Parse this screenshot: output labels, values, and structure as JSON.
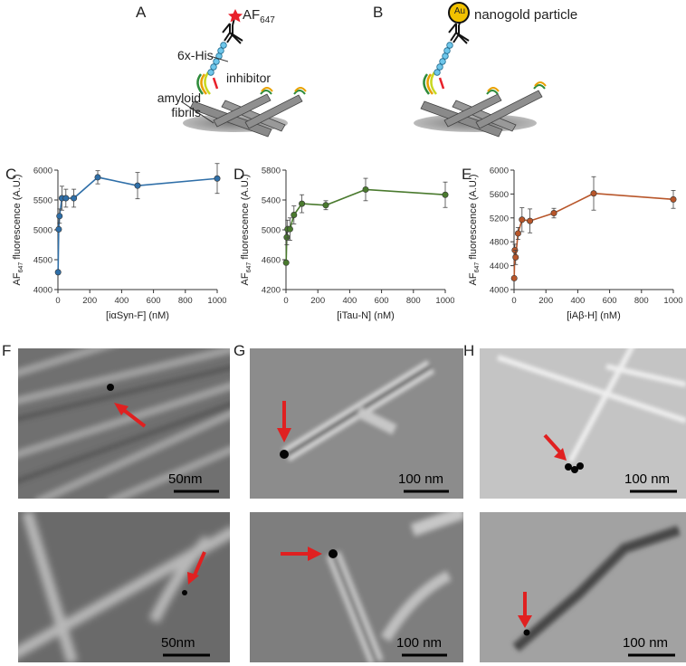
{
  "figure": {
    "panel_labels": [
      "A",
      "B",
      "C",
      "D",
      "E",
      "F",
      "G",
      "H"
    ],
    "schematic_a": {
      "fluor_label": "AF",
      "fluor_sub": "647",
      "tag_label": "6x-His",
      "inhibitor_label": "inhibitor",
      "fibrils_label_line1": "amyloid",
      "fibrils_label_line2": "fibrils",
      "fluor_color": "#e8202a"
    },
    "schematic_b": {
      "gold_text": "Au",
      "gold_label": "nanogold particle",
      "gold_color": "#f2c200"
    },
    "scale_bars": [
      "50nm",
      "100 nm",
      "100 nm",
      "50nm",
      "100 nm",
      "100 nm"
    ],
    "arrow_color": "#e02020"
  },
  "chart_data": [
    {
      "type": "line",
      "panel": "C",
      "color": "#2f6fa8",
      "xlabel": "[iαSyn-F] (nM)",
      "ylabel_pre": "AF",
      "ylabel_sub": "647",
      "ylabel_post": " fluorescence (A.U.)",
      "xlim": [
        0,
        1000
      ],
      "ylim": [
        4000,
        6000
      ],
      "xticks": [
        0,
        200,
        400,
        600,
        800,
        1000
      ],
      "yticks": [
        4000,
        4500,
        5000,
        5500,
        6000
      ],
      "x": [
        1,
        5,
        10,
        25,
        50,
        100,
        250,
        500,
        1000
      ],
      "y": [
        4290,
        5010,
        5230,
        5530,
        5530,
        5530,
        5880,
        5740,
        5860
      ],
      "err": [
        0,
        0,
        120,
        200,
        150,
        150,
        110,
        220,
        250
      ]
    },
    {
      "type": "line",
      "panel": "D",
      "color": "#4a7a2e",
      "xlabel": "[iTau-N] (nM)",
      "ylabel_pre": "AF",
      "ylabel_sub": "647",
      "ylabel_post": " fluorescence (A.U.)",
      "xlim": [
        0,
        1000
      ],
      "ylim": [
        4200,
        5800
      ],
      "xticks": [
        0,
        200,
        400,
        600,
        800,
        1000
      ],
      "yticks": [
        4200,
        4600,
        5000,
        5400,
        5800
      ],
      "x": [
        1,
        5,
        10,
        25,
        50,
        100,
        250,
        500,
        1000
      ],
      "y": [
        4560,
        4900,
        5010,
        5010,
        5200,
        5350,
        5330,
        5540,
        5470
      ],
      "err": [
        0,
        100,
        120,
        150,
        120,
        120,
        60,
        150,
        170
      ]
    },
    {
      "type": "line",
      "panel": "E",
      "color": "#b8562a",
      "xlabel": "[iAβ-H] (nM)",
      "ylabel_pre": "AF",
      "ylabel_sub": "647",
      "ylabel_post": " fluorescence (A.U.)",
      "xlim": [
        0,
        1000
      ],
      "ylim": [
        4000,
        6000
      ],
      "xticks": [
        0,
        200,
        400,
        600,
        800,
        1000
      ],
      "yticks": [
        4000,
        4400,
        4800,
        5200,
        5600,
        6000
      ],
      "x": [
        1,
        5,
        10,
        25,
        50,
        100,
        250,
        500,
        1000
      ],
      "y": [
        4190,
        4660,
        4540,
        4940,
        5170,
        5150,
        5280,
        5610,
        5510
      ],
      "err": [
        0,
        100,
        120,
        100,
        200,
        200,
        80,
        280,
        150
      ]
    }
  ]
}
